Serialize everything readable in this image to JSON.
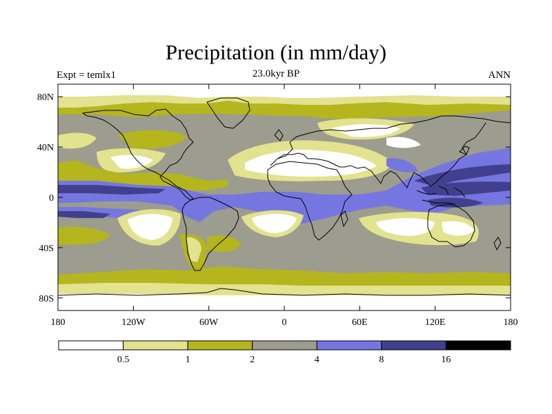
{
  "header": {
    "title": "Precipitation (in mm/day)",
    "subtitle": "23.0kyr BP",
    "left_label": "Expt = temlx1",
    "right_label": "ANN"
  },
  "map": {
    "type": "filled-contour-map",
    "projection": "cylindrical-equidistant",
    "lon_range": [
      -180,
      180
    ],
    "lat_range": [
      -90,
      90
    ],
    "lat_ticks": [
      {
        "value": 80,
        "label": "80N"
      },
      {
        "value": 40,
        "label": "40N"
      },
      {
        "value": 0,
        "label": "0"
      },
      {
        "value": -40,
        "label": "40S"
      },
      {
        "value": -80,
        "label": "80S"
      }
    ],
    "lon_ticks": [
      {
        "value": -180,
        "label": "180"
      },
      {
        "value": -120,
        "label": "120W"
      },
      {
        "value": -60,
        "label": "60W"
      },
      {
        "value": 0,
        "label": "0"
      },
      {
        "value": 60,
        "label": "60E"
      },
      {
        "value": 120,
        "label": "120E"
      },
      {
        "value": 180,
        "label": "180"
      }
    ],
    "levels": [
      "0.5",
      "1",
      "2",
      "4",
      "8",
      "16"
    ],
    "colors": [
      "#ffffff",
      "#e2e28f",
      "#b5b51e",
      "#9c9c8f",
      "#7676e0",
      "#40408f",
      "#000000"
    ]
  }
}
